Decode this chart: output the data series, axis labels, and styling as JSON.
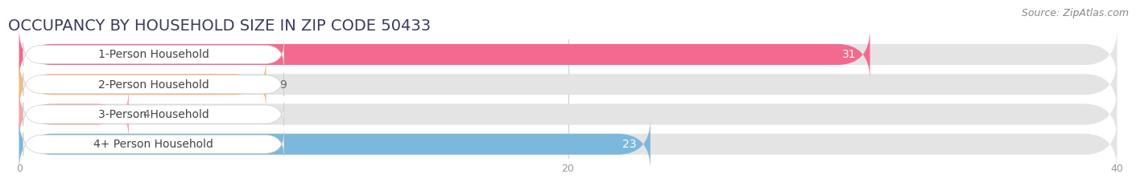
{
  "title": "OCCUPANCY BY HOUSEHOLD SIZE IN ZIP CODE 50433",
  "source": "Source: ZipAtlas.com",
  "categories": [
    "1-Person Household",
    "2-Person Household",
    "3-Person Household",
    "4+ Person Household"
  ],
  "values": [
    31,
    9,
    4,
    23
  ],
  "bar_colors": [
    "#F46A8E",
    "#F5BA82",
    "#F5A8A8",
    "#7BB8DC"
  ],
  "bar_bg_color": "#E4E4E4",
  "xlim": [
    0,
    40
  ],
  "xticks": [
    0,
    20,
    40
  ],
  "background_color": "#FFFFFF",
  "title_fontsize": 14,
  "label_fontsize": 10,
  "value_fontsize": 10,
  "source_fontsize": 9,
  "title_color": "#3A3A5C",
  "label_color": "#444444",
  "value_color_inside": "#FFFFFF",
  "value_color_outside": "#666666",
  "grid_color": "#CCCCCC",
  "source_color": "#888888"
}
